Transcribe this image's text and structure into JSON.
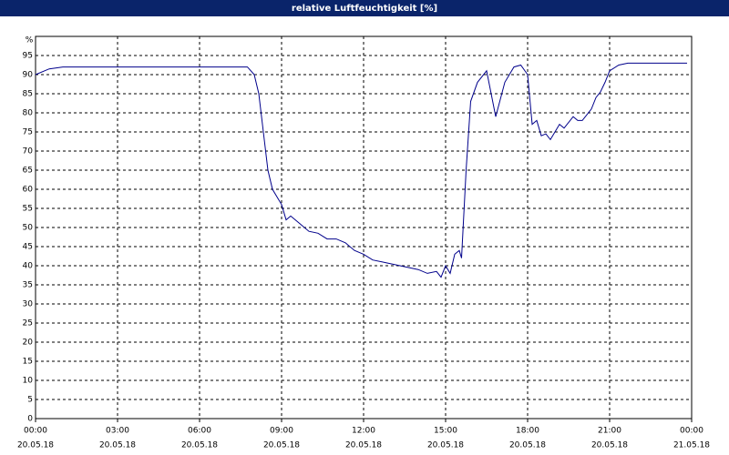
{
  "chart_data": {
    "type": "line",
    "title": "relative Luftfeuchtigkeit [%]",
    "y_label": "%",
    "x": [
      "20.05.18 00:00",
      "20.05.18 00:30",
      "20.05.18 01:00",
      "20.05.18 07:45",
      "20.05.18 08:00",
      "20.05.18 08:10",
      "20.05.18 08:20",
      "20.05.18 08:30",
      "20.05.18 08:40",
      "20.05.18 09:00",
      "20.05.18 09:10",
      "20.05.18 09:20",
      "20.05.18 09:40",
      "20.05.18 10:00",
      "20.05.18 10:20",
      "20.05.18 10:40",
      "20.05.18 11:00",
      "20.05.18 11:20",
      "20.05.18 11:40",
      "20.05.18 12:00",
      "20.05.18 12:20",
      "20.05.18 12:40",
      "20.05.18 13:00",
      "20.05.18 13:20",
      "20.05.18 13:40",
      "20.05.18 14:00",
      "20.05.18 14:20",
      "20.05.18 14:40",
      "20.05.18 14:50",
      "20.05.18 15:00",
      "20.05.18 15:10",
      "20.05.18 15:20",
      "20.05.18 15:30",
      "20.05.18 15:35",
      "20.05.18 15:45",
      "20.05.18 15:55",
      "20.05.18 16:10",
      "20.05.18 16:30",
      "20.05.18 16:50",
      "20.05.18 17:10",
      "20.05.18 17:30",
      "20.05.18 17:45",
      "20.05.18 18:00",
      "20.05.18 18:10",
      "20.05.18 18:20",
      "20.05.18 18:30",
      "20.05.18 18:40",
      "20.05.18 18:50",
      "20.05.18 19:10",
      "20.05.18 19:20",
      "20.05.18 19:40",
      "20.05.18 19:50",
      "20.05.18 20:00",
      "20.05.18 20:20",
      "20.05.18 20:30",
      "20.05.18 20:40",
      "20.05.18 20:50",
      "20.05.18 21:00",
      "20.05.18 21:20",
      "20.05.18 21:40",
      "20.05.18 23:50"
    ],
    "series": [
      {
        "name": "relative Luftfeuchtigkeit",
        "color": "#00008b",
        "values": [
          90,
          91.5,
          92,
          92,
          90,
          85,
          75,
          65,
          60,
          56,
          52,
          53,
          51,
          49,
          48.5,
          47,
          47,
          46,
          44,
          43,
          41.5,
          41,
          40.5,
          40,
          39.5,
          39,
          38,
          38.5,
          37,
          40,
          38,
          43,
          44,
          42,
          65,
          83,
          88,
          91,
          79,
          88,
          92,
          92.5,
          90,
          77,
          78,
          74,
          74.5,
          73,
          77,
          76,
          79,
          78,
          78,
          81,
          84,
          85.5,
          88,
          91,
          92.5,
          93,
          93
        ]
      }
    ],
    "xlim": [
      "20.05.18 00:00",
      "21.05.18 00:00"
    ],
    "xticks": [
      {
        "value": "20.05.18 00:00",
        "label": [
          "00:00",
          "20.05.18"
        ]
      },
      {
        "value": "20.05.18 03:00",
        "label": [
          "03:00",
          "20.05.18"
        ]
      },
      {
        "value": "20.05.18 06:00",
        "label": [
          "06:00",
          "20.05.18"
        ]
      },
      {
        "value": "20.05.18 09:00",
        "label": [
          "09:00",
          "20.05.18"
        ]
      },
      {
        "value": "20.05.18 12:00",
        "label": [
          "12:00",
          "20.05.18"
        ]
      },
      {
        "value": "20.05.18 15:00",
        "label": [
          "15:00",
          "20.05.18"
        ]
      },
      {
        "value": "20.05.18 18:00",
        "label": [
          "18:00",
          "20.05.18"
        ]
      },
      {
        "value": "20.05.18 21:00",
        "label": [
          "21:00",
          "20.05.18"
        ]
      },
      {
        "value": "21.05.18 00:00",
        "label": [
          "00:00",
          "21.05.18"
        ]
      }
    ],
    "ylim": [
      0,
      100
    ],
    "yticks": [
      0,
      5,
      10,
      15,
      20,
      25,
      30,
      35,
      40,
      45,
      50,
      55,
      60,
      65,
      70,
      75,
      80,
      85,
      90,
      95
    ],
    "grid": true
  }
}
